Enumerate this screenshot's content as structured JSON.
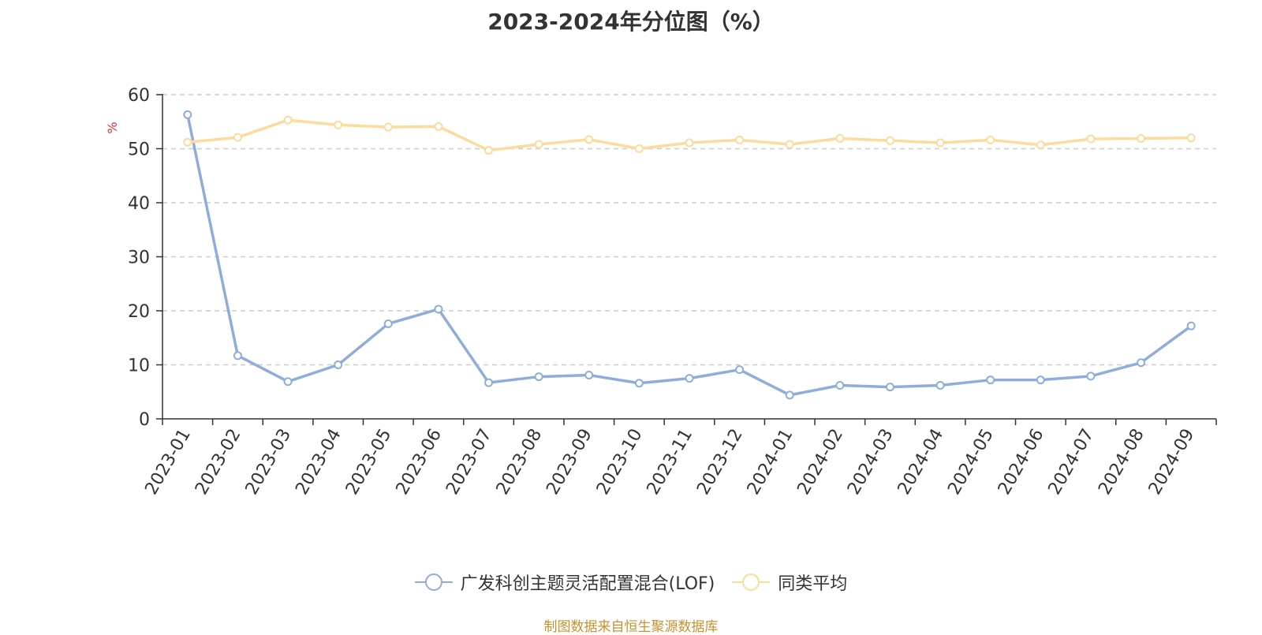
{
  "chart_data": {
    "type": "line",
    "title": "2023-2024年分位图（%）",
    "ylabel": "%",
    "xlabel": "",
    "ylim": [
      0,
      60
    ],
    "yticks": [
      0,
      10,
      20,
      30,
      40,
      50,
      60
    ],
    "grid": true,
    "legend_position": "bottom",
    "categories": [
      "2023-01",
      "2023-02",
      "2023-03",
      "2023-04",
      "2023-05",
      "2023-06",
      "2023-07",
      "2023-08",
      "2023-09",
      "2023-10",
      "2023-11",
      "2023-12",
      "2024-01",
      "2024-02",
      "2024-03",
      "2024-04",
      "2024-05",
      "2024-06",
      "2024-07",
      "2024-08",
      "2024-09"
    ],
    "series": [
      {
        "name": "广发科创主题灵活配置混合(LOF)",
        "color": "#8fadda",
        "values": [
          56.3,
          11.7,
          6.9,
          10.0,
          17.6,
          20.3,
          6.7,
          7.8,
          8.1,
          6.6,
          7.5,
          9.1,
          4.4,
          6.2,
          5.9,
          6.2,
          7.2,
          7.2,
          7.9,
          10.4,
          17.2
        ]
      },
      {
        "name": "同类平均",
        "color": "#fddb9a",
        "values": [
          51.2,
          52.1,
          55.3,
          54.4,
          54.0,
          54.1,
          49.7,
          50.8,
          51.7,
          50.0,
          51.1,
          51.6,
          50.8,
          51.9,
          51.5,
          51.1,
          51.6,
          50.7,
          51.8,
          51.9,
          52.0
        ]
      }
    ]
  },
  "source_note": "制图数据来自恒生聚源数据库",
  "colors": {
    "axis": "#333333",
    "grid": "#cccccc",
    "ylabel": "#e8322c",
    "source": "#c9912e"
  }
}
